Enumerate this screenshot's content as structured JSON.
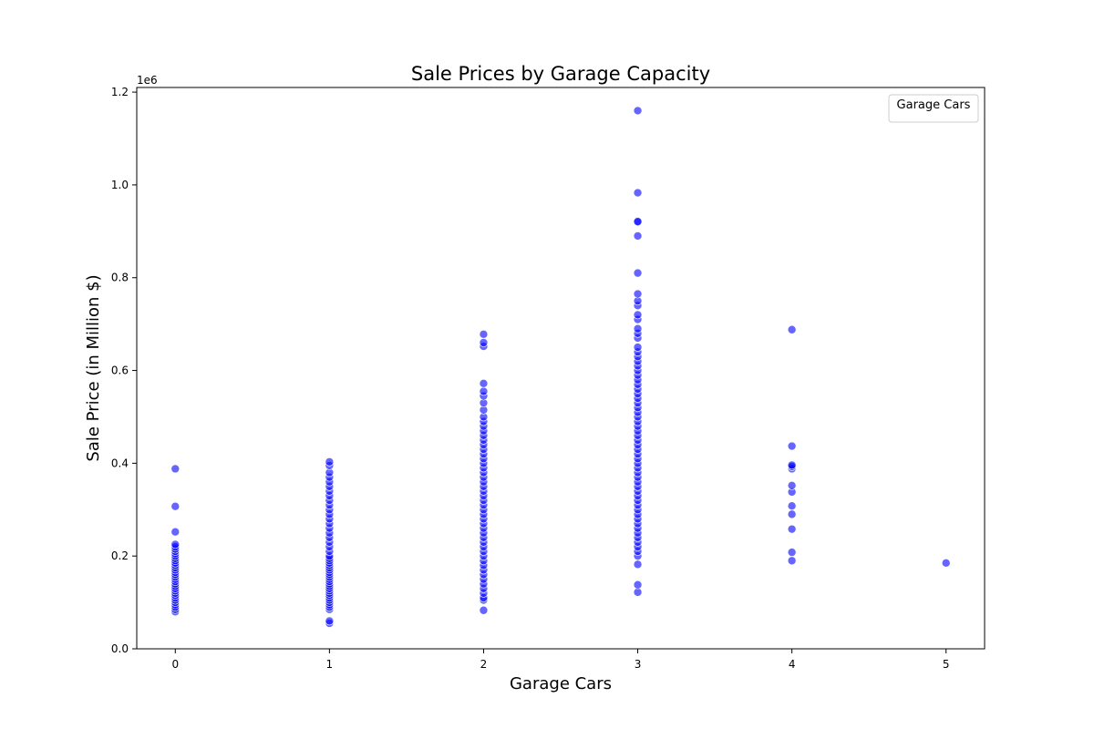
{
  "chart_data": {
    "type": "scatter",
    "title": "Sale Prices by Garage Capacity",
    "xlabel": "Garage Cars",
    "ylabel": "Sale Price (in Million $)",
    "y_offset_label": "1e6",
    "xlim": [
      -0.25,
      5.25
    ],
    "ylim": [
      0,
      1.21
    ],
    "x_ticks": [
      "0",
      "1",
      "2",
      "3",
      "4",
      "5"
    ],
    "y_ticks": [
      "0.0",
      "0.2",
      "0.4",
      "0.6",
      "0.8",
      "1.0",
      "1.2"
    ],
    "grid": false,
    "legend": {
      "title": "Garage Cars",
      "placement": "top-right"
    },
    "point_color": "#0000ff",
    "series": [
      {
        "x": 0,
        "y": [
          0.08,
          0.085,
          0.09,
          0.095,
          0.1,
          0.105,
          0.11,
          0.115,
          0.12,
          0.125,
          0.13,
          0.135,
          0.14,
          0.145,
          0.15,
          0.155,
          0.16,
          0.165,
          0.17,
          0.175,
          0.18,
          0.185,
          0.19,
          0.195,
          0.2,
          0.205,
          0.21,
          0.215,
          0.22,
          0.225,
          0.252,
          0.307,
          0.388
        ]
      },
      {
        "x": 1,
        "y": [
          0.055,
          0.06,
          0.085,
          0.09,
          0.095,
          0.1,
          0.105,
          0.11,
          0.115,
          0.12,
          0.125,
          0.13,
          0.135,
          0.14,
          0.145,
          0.15,
          0.155,
          0.16,
          0.165,
          0.17,
          0.175,
          0.18,
          0.185,
          0.19,
          0.195,
          0.2,
          0.21,
          0.22,
          0.23,
          0.24,
          0.25,
          0.26,
          0.27,
          0.28,
          0.29,
          0.3,
          0.31,
          0.32,
          0.33,
          0.34,
          0.35,
          0.36,
          0.37,
          0.38,
          0.395,
          0.403
        ]
      },
      {
        "x": 2,
        "y": [
          0.083,
          0.105,
          0.11,
          0.12,
          0.13,
          0.14,
          0.15,
          0.16,
          0.17,
          0.18,
          0.19,
          0.2,
          0.21,
          0.22,
          0.23,
          0.24,
          0.25,
          0.26,
          0.27,
          0.28,
          0.29,
          0.3,
          0.31,
          0.32,
          0.33,
          0.34,
          0.35,
          0.36,
          0.37,
          0.38,
          0.39,
          0.4,
          0.41,
          0.42,
          0.43,
          0.44,
          0.45,
          0.46,
          0.47,
          0.48,
          0.49,
          0.5,
          0.515,
          0.53,
          0.545,
          0.555,
          0.572,
          0.652,
          0.66,
          0.678
        ]
      },
      {
        "x": 3,
        "y": [
          0.122,
          0.138,
          0.182,
          0.2,
          0.21,
          0.22,
          0.23,
          0.24,
          0.25,
          0.26,
          0.27,
          0.28,
          0.29,
          0.3,
          0.31,
          0.32,
          0.33,
          0.34,
          0.35,
          0.36,
          0.37,
          0.38,
          0.39,
          0.4,
          0.41,
          0.42,
          0.43,
          0.44,
          0.45,
          0.46,
          0.47,
          0.48,
          0.49,
          0.5,
          0.51,
          0.52,
          0.53,
          0.54,
          0.55,
          0.56,
          0.57,
          0.58,
          0.59,
          0.6,
          0.61,
          0.62,
          0.63,
          0.64,
          0.65,
          0.67,
          0.68,
          0.69,
          0.71,
          0.72,
          0.74,
          0.75,
          0.765,
          0.81,
          0.89,
          0.92,
          0.921,
          0.983,
          1.16
        ]
      },
      {
        "x": 4,
        "y": [
          0.19,
          0.208,
          0.258,
          0.29,
          0.308,
          0.338,
          0.352,
          0.388,
          0.393,
          0.396,
          0.437,
          0.688
        ]
      },
      {
        "x": 5,
        "y": [
          0.185
        ]
      }
    ]
  }
}
